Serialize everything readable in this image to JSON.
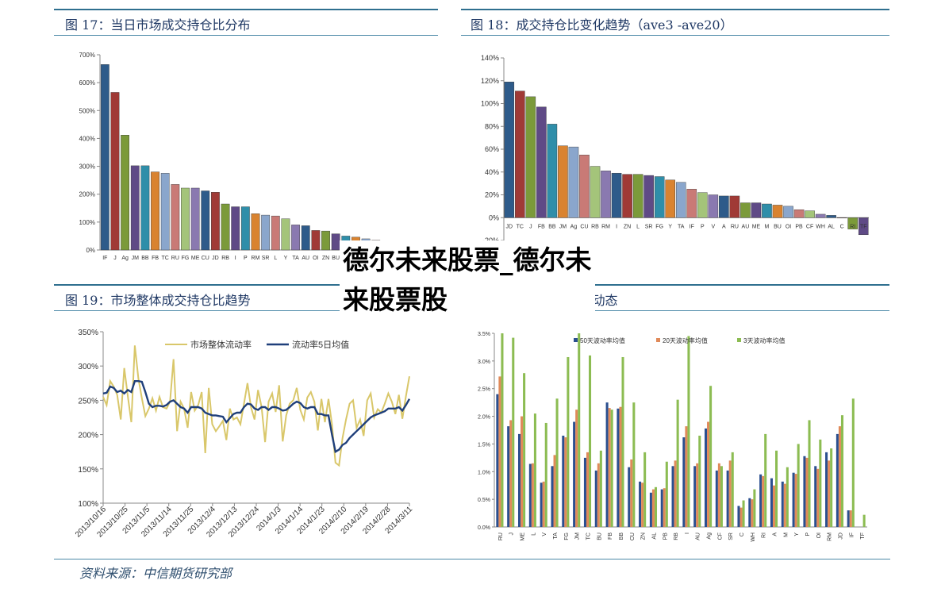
{
  "source_note": "资料来源：中信期货研究部",
  "overlay": {
    "line1": "德尔未来股票_德尔未",
    "line2": "来股票股"
  },
  "colors": {
    "palette": [
      "#2e5b8a",
      "#a03a36",
      "#7b9a3a",
      "#5f4a86",
      "#2f8ea9",
      "#d98330",
      "#8aa6cc",
      "#c97a76",
      "#a4c47a",
      "#8a79b0"
    ],
    "line_light": "#d9c76a",
    "line_dark": "#1f3f7a",
    "bar50": "#2b4f8f",
    "bar20": "#e08a5a",
    "bar3": "#8cbc52"
  },
  "chart_data": [
    {
      "id": "c17",
      "type": "bar",
      "title": "图 17：当日市场成交持仓比分布",
      "categories": [
        "IF",
        "J",
        "Ag",
        "JM",
        "BB",
        "FB",
        "TC",
        "RU",
        "FG",
        "ME",
        "CU",
        "JD",
        "RB",
        "I",
        "P",
        "RM",
        "SR",
        "L",
        "Y",
        "TA",
        "AU",
        "OI",
        "ZN",
        "BU",
        "A",
        "M",
        "",
        "",
        "AL",
        "",
        ""
      ],
      "values": [
        665,
        565,
        412,
        302,
        302,
        280,
        275,
        235,
        222,
        222,
        212,
        207,
        165,
        155,
        155,
        130,
        125,
        122,
        112,
        90,
        87,
        70,
        68,
        58,
        50,
        46,
        40,
        35,
        30,
        28,
        25
      ],
      "ylim": [
        0,
        700
      ],
      "yticks": [
        0,
        100,
        200,
        300,
        400,
        500,
        600,
        700
      ],
      "ytick_labels": [
        "0%",
        "100%",
        "200%",
        "300%",
        "400%",
        "500%",
        "600%",
        "700%"
      ]
    },
    {
      "id": "c18",
      "type": "bar",
      "title": "图 18：成交持仓比变化趋势（ave3 -ave20）",
      "categories": [
        "JD",
        "TC",
        "J",
        "FB",
        "BB",
        "JM",
        "Ag",
        "CU",
        "RB",
        "RM",
        "I",
        "ZN",
        "L",
        "SR",
        "FG",
        "Y",
        "TA",
        "IF",
        "P",
        "V",
        "A",
        "RU",
        "AU",
        "ME",
        "M",
        "BU",
        "OI",
        "PB",
        "CF",
        "WH",
        "AL",
        "C",
        "RI",
        "TF"
      ],
      "values": [
        119,
        111,
        106,
        97,
        82,
        63,
        62,
        55,
        45,
        41,
        39,
        38,
        38,
        37,
        36,
        33,
        31,
        25,
        22,
        20,
        19,
        19,
        13,
        13,
        12,
        11,
        10,
        7,
        6,
        3,
        2,
        0,
        -10,
        -15
      ],
      "ylim": [
        -20,
        140
      ],
      "yticks": [
        -20,
        0,
        20,
        40,
        60,
        80,
        100,
        120,
        140
      ],
      "ytick_labels": [
        "-20%",
        "0%",
        "20%",
        "40%",
        "60%",
        "80%",
        "100%",
        "120%",
        "140%"
      ]
    },
    {
      "id": "c19",
      "type": "line",
      "title": "图 19：市场整体成交持仓比趋势",
      "x_labels": [
        "2013/10/16",
        "2013/10/25",
        "2013/11/5",
        "2013/11/14",
        "2013/11/25",
        "2013/12/4",
        "2013/12/13",
        "2013/12/24",
        "2014/1/3",
        "2014/1/14",
        "2014/1/23",
        "2014/2/10",
        "2014/2/19",
        "2014/2/28",
        "2014/3/11"
      ],
      "ylim": [
        100,
        350
      ],
      "yticks": [
        100,
        150,
        200,
        250,
        300,
        350
      ],
      "ytick_labels": [
        "100%",
        "150%",
        "200%",
        "250%",
        "300%",
        "350%"
      ],
      "series": [
        {
          "name": "市场整体流动率",
          "values": [
            255,
            243,
            278,
            270,
            258,
            222,
            297,
            256,
            218,
            330,
            282,
            253,
            227,
            238,
            253,
            235,
            255,
            240,
            238,
            248,
            310,
            205,
            248,
            238,
            210,
            262,
            235,
            243,
            262,
            173,
            268,
            215,
            205,
            212,
            220,
            192,
            238,
            222,
            225,
            215,
            245,
            275,
            240,
            222,
            265,
            240,
            189,
            248,
            260,
            233,
            272,
            190,
            228,
            245,
            250,
            268,
            236,
            222,
            254,
            262,
            248,
            206,
            252,
            218,
            252,
            215,
            159,
            155,
            195,
            222,
            245,
            250,
            210,
            222,
            198,
            250,
            260,
            225,
            237,
            232,
            245,
            260,
            248,
            230,
            258,
            223,
            256,
            285
          ]
        },
        {
          "name": "流动率5日均值",
          "values": [
            260,
            261,
            270,
            268,
            262,
            264,
            260,
            265,
            262,
            278,
            278,
            277,
            262,
            245,
            240,
            242,
            242,
            241,
            243,
            248,
            250,
            245,
            240,
            238,
            232,
            240,
            240,
            240,
            238,
            232,
            230,
            228,
            228,
            227,
            226,
            218,
            224,
            230,
            232,
            232,
            240,
            245,
            244,
            238,
            236,
            240,
            240,
            236,
            240,
            240,
            238,
            235,
            236,
            240,
            245,
            248,
            246,
            240,
            238,
            240,
            240,
            230,
            230,
            228,
            228,
            200,
            175,
            178,
            185,
            188,
            195,
            200,
            205,
            210,
            215,
            220,
            225,
            228,
            230,
            232,
            234,
            238,
            238,
            238,
            240,
            235,
            243,
            252
          ]
        }
      ]
    },
    {
      "id": "c20",
      "type": "bar",
      "title": "图 20：各品种波动率动态",
      "legend": [
        "50天波动率均值",
        "20天波动率均值",
        "3天波动率均值"
      ],
      "categories": [
        "RU",
        "J",
        "ME",
        "L",
        "V",
        "TA",
        "FG",
        "JM",
        "TC",
        "BU",
        "FB",
        "BB",
        "CU",
        "ZN",
        "AL",
        "PB",
        "RB",
        "I",
        "AU",
        "Ag",
        "CF",
        "SR",
        "C",
        "WH",
        "RI",
        "A",
        "M",
        "Y",
        "P",
        "OI",
        "RM",
        "JD",
        "IF",
        "TF"
      ],
      "ylim": [
        0,
        3.5
      ],
      "yticks": [
        0,
        0.5,
        1,
        1.5,
        2,
        2.5,
        3,
        3.5
      ],
      "ytick_labels": [
        "0.0%",
        "0.5%",
        "1.0%",
        "1.5%",
        "2.0%",
        "2.5%",
        "3.0%",
        "3.5%"
      ],
      "series": [
        {
          "name": "50天波动率均值",
          "values": [
            2.4,
            1.82,
            1.68,
            1.14,
            0.8,
            1.1,
            1.65,
            1.9,
            1.25,
            1.02,
            2.25,
            2.14,
            1.08,
            0.82,
            0.62,
            0.68,
            1.1,
            1.62,
            1.1,
            1.78,
            1.02,
            1.02,
            0.38,
            0.52,
            0.95,
            0.88,
            0.82,
            0.98,
            1.28,
            1.1,
            1.35,
            1.68,
            0.3,
            0.0
          ]
        },
        {
          "name": "20天波动率均值",
          "values": [
            2.72,
            1.93,
            2.0,
            1.15,
            0.82,
            1.3,
            1.62,
            2.12,
            1.35,
            1.15,
            2.15,
            2.17,
            1.22,
            0.8,
            0.68,
            0.7,
            1.2,
            1.82,
            1.15,
            1.9,
            1.15,
            1.2,
            0.35,
            0.5,
            0.92,
            0.75,
            0.78,
            0.96,
            1.25,
            1.05,
            1.2,
            1.82,
            0.3,
            0.0
          ]
        },
        {
          "name": "3天波动率均值",
          "values": [
            3.5,
            3.42,
            2.78,
            2.05,
            1.88,
            2.32,
            3.07,
            3.5,
            3.1,
            1.38,
            2.12,
            3.07,
            2.25,
            1.35,
            0.72,
            1.18,
            2.3,
            3.45,
            1.65,
            2.55,
            1.1,
            1.35,
            0.48,
            0.68,
            1.68,
            1.38,
            1.08,
            1.5,
            1.93,
            1.58,
            1.42,
            2.02,
            2.32,
            0.22
          ]
        }
      ]
    }
  ]
}
